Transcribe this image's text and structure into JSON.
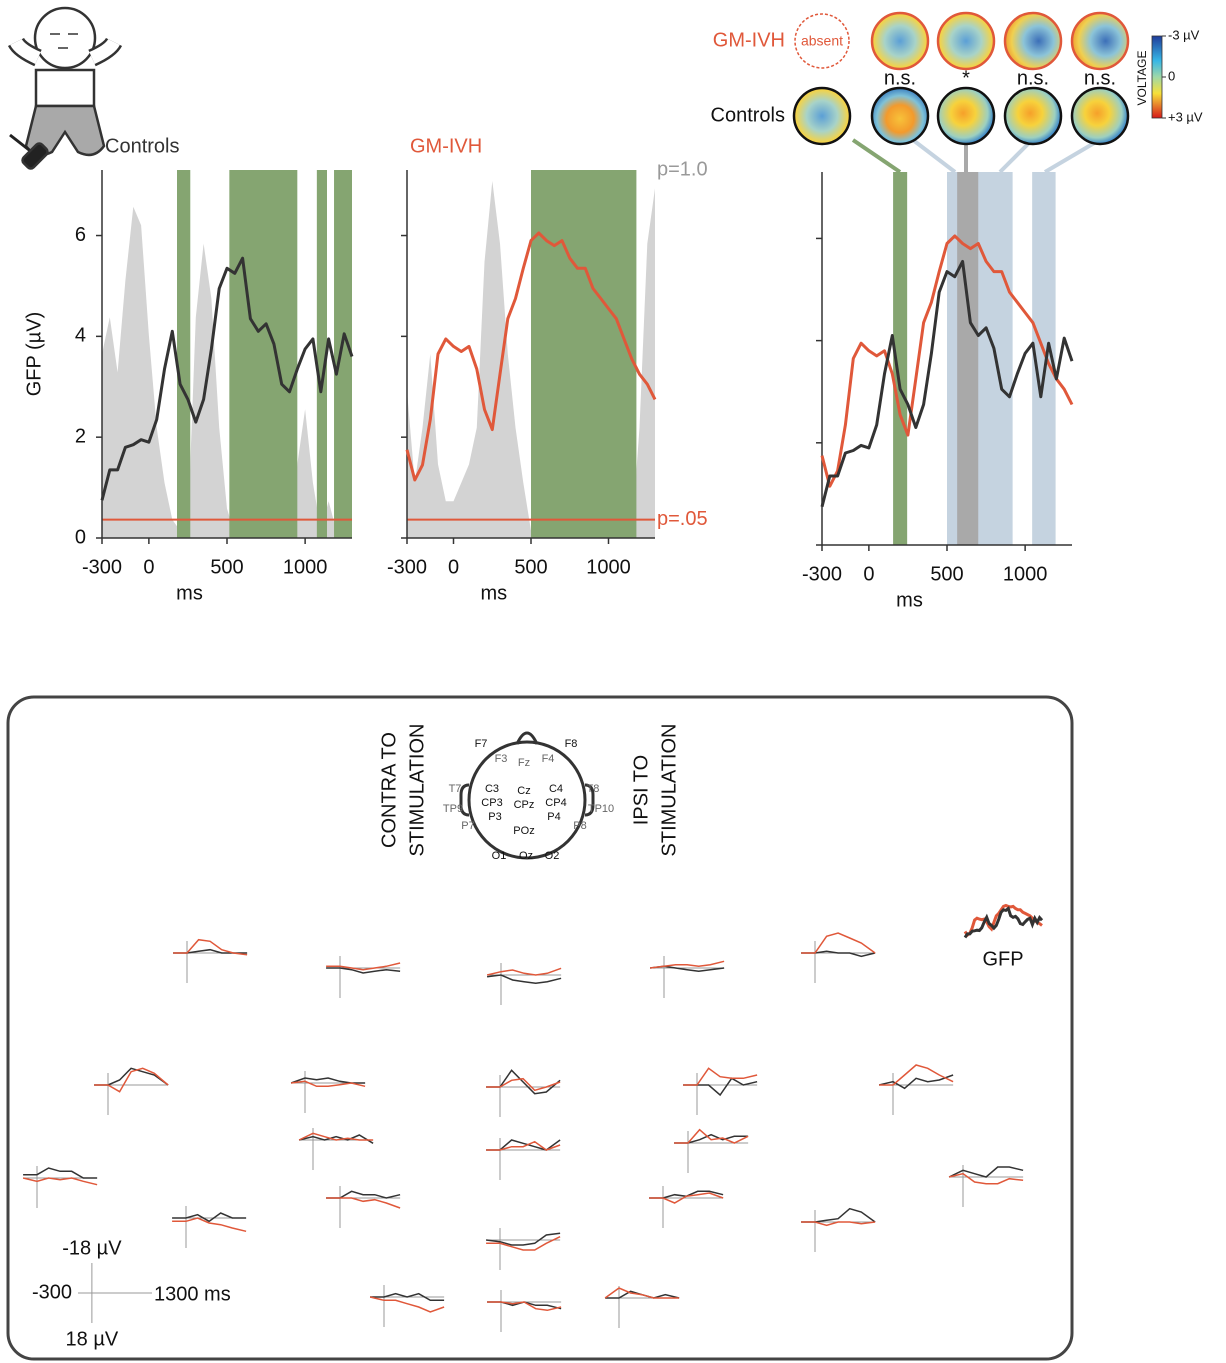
{
  "chart_data": [
    {
      "type": "line",
      "title": "Controls",
      "ylabel": "GFP (µV)",
      "xlabel": "ms",
      "x": [
        -300,
        -250,
        -200,
        -150,
        -100,
        -50,
        0,
        50,
        100,
        150,
        200,
        250,
        300,
        350,
        400,
        450,
        500,
        550,
        600,
        650,
        700,
        750,
        800,
        850,
        900,
        950,
        1000,
        1050,
        1100,
        1150,
        1200,
        1250,
        1300
      ],
      "series": [
        {
          "color": "#333333",
          "values": [
            0.75,
            1.35,
            1.35,
            1.8,
            1.85,
            1.95,
            1.9,
            2.35,
            3.35,
            4.1,
            3.05,
            2.75,
            2.3,
            2.75,
            3.75,
            4.95,
            5.35,
            5.25,
            5.55,
            4.35,
            4.1,
            4.25,
            3.85,
            3.05,
            2.9,
            3.35,
            3.75,
            3.95,
            2.9,
            3.95,
            3.25,
            4.05,
            3.6
          ]
        }
      ],
      "p_values": [
        0.5,
        0.6,
        0.45,
        0.7,
        0.9,
        0.85,
        0.55,
        0.3,
        0.15,
        0.05,
        0.02,
        0.03,
        0.6,
        0.8,
        0.65,
        0.3,
        0.08,
        0.01,
        0.01,
        0.01,
        0.01,
        0.01,
        0.01,
        0.01,
        0.01,
        0.2,
        0.35,
        0.15,
        0.02,
        0.1,
        0.02,
        0.02,
        0.02
      ],
      "p_color": "#d3d3d3",
      "p_threshold": 0.05,
      "threshold_color": "#e0583a",
      "windows": [
        {
          "range": [
            180,
            265
          ],
          "color": "#85a571"
        },
        {
          "range": [
            515,
            950
          ],
          "color": "#85a571"
        },
        {
          "range": [
            1075,
            1140
          ],
          "color": "#85a571"
        },
        {
          "range": [
            1185,
            1300
          ],
          "color": "#85a571"
        }
      ],
      "xlim": [
        -300,
        1300
      ],
      "xticks": [
        -300,
        0,
        500,
        1000
      ],
      "ylim": [
        0,
        7.3
      ],
      "yticks": [
        0,
        2,
        4,
        6
      ],
      "ytick_labels": true,
      "y2lim": [
        0,
        1
      ]
    },
    {
      "type": "line",
      "title": "GM-IVH",
      "xlabel": "ms",
      "x": [
        -300,
        -250,
        -200,
        -150,
        -100,
        -50,
        0,
        50,
        100,
        150,
        200,
        250,
        300,
        350,
        400,
        450,
        500,
        550,
        600,
        650,
        700,
        750,
        800,
        850,
        900,
        950,
        1000,
        1050,
        1100,
        1150,
        1200,
        1250,
        1300
      ],
      "series": [
        {
          "color": "#e0583a",
          "values": [
            1.75,
            1.15,
            1.45,
            2.35,
            3.65,
            3.95,
            3.8,
            3.7,
            3.8,
            3.35,
            2.55,
            2.15,
            3.25,
            4.35,
            4.75,
            5.35,
            5.9,
            6.05,
            5.9,
            5.8,
            5.9,
            5.55,
            5.35,
            5.35,
            4.95,
            4.75,
            4.55,
            4.35,
            3.95,
            3.55,
            3.25,
            3.05,
            2.75
          ]
        }
      ],
      "p_values": [
        0.4,
        0.15,
        0.3,
        0.5,
        0.2,
        0.1,
        0.1,
        0.15,
        0.2,
        0.3,
        0.75,
        0.97,
        0.8,
        0.5,
        0.3,
        0.15,
        0.02,
        0.01,
        0.01,
        0.01,
        0.01,
        0.01,
        0.01,
        0.01,
        0.01,
        0.01,
        0.01,
        0.01,
        0.01,
        0.01,
        0.3,
        0.8,
        0.95
      ],
      "p_color": "#d3d3d3",
      "p_threshold": 0.05,
      "threshold_color": "#e0583a",
      "windows": [
        {
          "range": [
            500,
            1180
          ],
          "color": "#85a571"
        }
      ],
      "xlim": [
        -300,
        1300
      ],
      "xticks": [
        -300,
        0,
        500,
        1000
      ],
      "ylim": [
        0,
        7.3
      ],
      "yticks": [
        0,
        2,
        4,
        6
      ],
      "ytick_labels": false,
      "y2lim": [
        0,
        1
      ],
      "y2ticks": [
        {
          "value": 1,
          "label": "p=1.0"
        },
        {
          "value": 0.05,
          "label": "p=.05"
        }
      ]
    },
    {
      "type": "line",
      "xlabel": "ms",
      "x": [
        -300,
        -250,
        -200,
        -150,
        -100,
        -50,
        0,
        50,
        100,
        150,
        200,
        250,
        300,
        350,
        400,
        450,
        500,
        550,
        600,
        650,
        700,
        750,
        800,
        850,
        900,
        950,
        1000,
        1050,
        1100,
        1150,
        1200,
        1250,
        1300
      ],
      "series": [
        {
          "color": "#e0583a",
          "values": [
            1.75,
            1.15,
            1.45,
            2.35,
            3.65,
            3.95,
            3.8,
            3.7,
            3.8,
            3.35,
            2.55,
            2.15,
            3.25,
            4.35,
            4.75,
            5.35,
            5.9,
            6.05,
            5.9,
            5.8,
            5.9,
            5.55,
            5.35,
            5.35,
            4.95,
            4.75,
            4.55,
            4.35,
            3.95,
            3.55,
            3.25,
            3.05,
            2.75
          ]
        },
        {
          "color": "#333333",
          "values": [
            0.75,
            1.35,
            1.35,
            1.8,
            1.85,
            1.95,
            1.9,
            2.35,
            3.35,
            4.1,
            3.05,
            2.75,
            2.3,
            2.75,
            3.75,
            4.95,
            5.35,
            5.25,
            5.55,
            4.35,
            4.1,
            4.25,
            3.85,
            3.05,
            2.9,
            3.35,
            3.75,
            3.95,
            2.9,
            3.95,
            3.25,
            4.05,
            3.6
          ]
        }
      ],
      "windows": [
        {
          "range": [
            155,
            245
          ],
          "color": "#85a571"
        },
        {
          "range": [
            500,
            920
          ],
          "color": "#c5d3e0"
        },
        {
          "range": [
            1045,
            1195
          ],
          "color": "#c5d3e0"
        },
        {
          "range": [
            565,
            700
          ],
          "color": "#a9a9a9"
        }
      ],
      "xlim": [
        -300,
        1300
      ],
      "xticks": [
        -300,
        0,
        500,
        1000
      ],
      "ylim": [
        0,
        7.3
      ],
      "yticks": [
        0,
        2,
        4,
        6
      ],
      "ytick_labels": false
    }
  ],
  "topomaps": {
    "gm_ivh_label": "GM-IVH",
    "controls_label": "Controls",
    "absent": "absent",
    "stats": [
      "n.s.",
      "*",
      "n.s.",
      "n.s."
    ],
    "colorbar": {
      "title": "VOLTAGE",
      "range": [
        -3,
        3
      ],
      "ticks": [
        {
          "value": -3,
          "label": "-3 µV"
        },
        0,
        {
          "value": 3,
          "label": "+3 µV"
        }
      ]
    }
  },
  "electrode_map": {
    "contra": [
      "CONTRA TO",
      "STIMULATION"
    ],
    "ipsi": [
      "IPSI TO",
      "STIMULATION"
    ],
    "electrodes": [
      "F7",
      "F8",
      "F3",
      "Fz",
      "F4",
      "T7",
      "T8",
      "TP9",
      "TP10",
      "C3",
      "Cz",
      "C4",
      "CP3",
      "CPz",
      "CP4",
      "P3",
      "P4",
      "P7",
      "P8",
      "POz",
      "O1",
      "Oz",
      "O2"
    ]
  },
  "mini_plots": {
    "gfp_label": "GFP",
    "x": [
      -300,
      0,
      250,
      500,
      750,
      1000,
      1300
    ],
    "scale": {
      "xlim": [
        {
          "value": -300,
          "label": "-300"
        },
        {
          "value": 1300,
          "label": "1300 ms"
        }
      ],
      "ylim": [
        {
          "value": -18,
          "label": "-18 µV"
        },
        {
          "value": 18,
          "label": "18 µV"
        }
      ]
    },
    "plots": [
      {
        "controls": [
          0,
          0,
          -1,
          -2,
          0,
          0,
          0
        ],
        "gm_ivh": [
          0,
          0,
          -8,
          -7,
          -2,
          0,
          1
        ]
      },
      {
        "controls": [
          0,
          0,
          1,
          3,
          2,
          1,
          2
        ],
        "gm_ivh": [
          -1,
          -1,
          0,
          1,
          0,
          -1,
          -3
        ]
      },
      {
        "controls": [
          1,
          0,
          3,
          4,
          5,
          4,
          2
        ],
        "gm_ivh": [
          0,
          -2,
          -3,
          -1,
          0,
          -1,
          -4
        ]
      },
      {
        "controls": [
          0,
          -1,
          0,
          1,
          2,
          1,
          0
        ],
        "gm_ivh": [
          0,
          -1,
          -2,
          -2,
          -1,
          -2,
          -4
        ]
      },
      {
        "controls": [
          0,
          0,
          -1,
          0,
          0,
          2,
          0
        ],
        "gm_ivh": [
          0,
          0,
          -10,
          -12,
          -9,
          -6,
          0
        ]
      },
      {
        "controls": [
          0,
          0,
          -3,
          -10,
          -8,
          -6,
          0
        ],
        "gm_ivh": [
          0,
          0,
          4,
          -8,
          -10,
          -7,
          0
        ]
      },
      {
        "controls": [
          0,
          -3,
          -2,
          -3,
          -1,
          0,
          0
        ],
        "gm_ivh": [
          0,
          -1,
          2,
          2,
          1,
          0,
          2
        ]
      },
      {
        "controls": [
          0,
          0,
          -10,
          -3,
          4,
          3,
          -4
        ],
        "gm_ivh": [
          0,
          0,
          -4,
          -5,
          2,
          0,
          -3
        ]
      },
      {
        "controls": [
          0,
          0,
          0,
          6,
          -4,
          0,
          -2
        ],
        "gm_ivh": [
          0,
          0,
          -10,
          -5,
          -4,
          -4,
          -6
        ]
      },
      {
        "controls": [
          0,
          -2,
          2,
          -4,
          -2,
          -3,
          -6
        ],
        "gm_ivh": [
          0,
          0,
          -6,
          -12,
          -10,
          -6,
          -2
        ]
      },
      {
        "controls": [
          0,
          -2,
          0,
          -2,
          0,
          -3,
          2
        ],
        "gm_ivh": [
          0,
          -4,
          -2,
          0,
          -1,
          0,
          0
        ]
      },
      {
        "controls": [
          0,
          0,
          -6,
          -4,
          -2,
          0,
          -6
        ],
        "gm_ivh": [
          0,
          0,
          -2,
          -2,
          -5,
          0,
          -3
        ]
      },
      {
        "controls": [
          0,
          0,
          -2,
          -5,
          -2,
          -4,
          -4
        ],
        "gm_ivh": [
          0,
          0,
          -8,
          -2,
          -3,
          0,
          -4
        ]
      },
      {
        "controls": [
          -2,
          -2,
          -6,
          -4,
          -4,
          0,
          0
        ],
        "gm_ivh": [
          0,
          2,
          0,
          1,
          0,
          2,
          4
        ]
      },
      {
        "controls": [
          0,
          0,
          -4,
          -2,
          -2,
          0,
          -2
        ],
        "gm_ivh": [
          0,
          0,
          0,
          2,
          1,
          3,
          6
        ]
      },
      {
        "controls": [
          0,
          0,
          -2,
          -1,
          -4,
          -4,
          -2
        ],
        "gm_ivh": [
          0,
          0,
          3,
          -1,
          -2,
          -3,
          0
        ]
      },
      {
        "controls": [
          0,
          -4,
          -2,
          0,
          -6,
          -6,
          -4
        ],
        "gm_ivh": [
          0,
          -2,
          3,
          4,
          4,
          1,
          2
        ]
      },
      {
        "controls": [
          0,
          0,
          -2,
          2,
          -3,
          0,
          0
        ],
        "gm_ivh": [
          2,
          2,
          0,
          3,
          4,
          6,
          8
        ]
      },
      {
        "controls": [
          0,
          0,
          -1,
          -2,
          -8,
          -6,
          0
        ],
        "gm_ivh": [
          0,
          0,
          2,
          0,
          0,
          1,
          0
        ]
      },
      {
        "controls": [
          0,
          1,
          3,
          3,
          2,
          -3,
          -4
        ],
        "gm_ivh": [
          2,
          2,
          4,
          6,
          6,
          2,
          -2
        ]
      },
      {
        "controls": [
          0,
          0,
          -2,
          0,
          -2,
          2,
          2
        ],
        "gm_ivh": [
          0,
          2,
          2,
          4,
          6,
          9,
          6
        ]
      },
      {
        "controls": [
          0,
          0,
          2,
          0,
          2,
          2,
          4
        ],
        "gm_ivh": [
          0,
          0,
          1,
          0,
          4,
          5,
          3
        ]
      },
      {
        "controls": [
          0,
          0,
          -4,
          -2,
          0,
          -2,
          0
        ],
        "gm_ivh": [
          0,
          -6,
          -3,
          -2,
          0,
          0,
          0
        ]
      }
    ]
  }
}
